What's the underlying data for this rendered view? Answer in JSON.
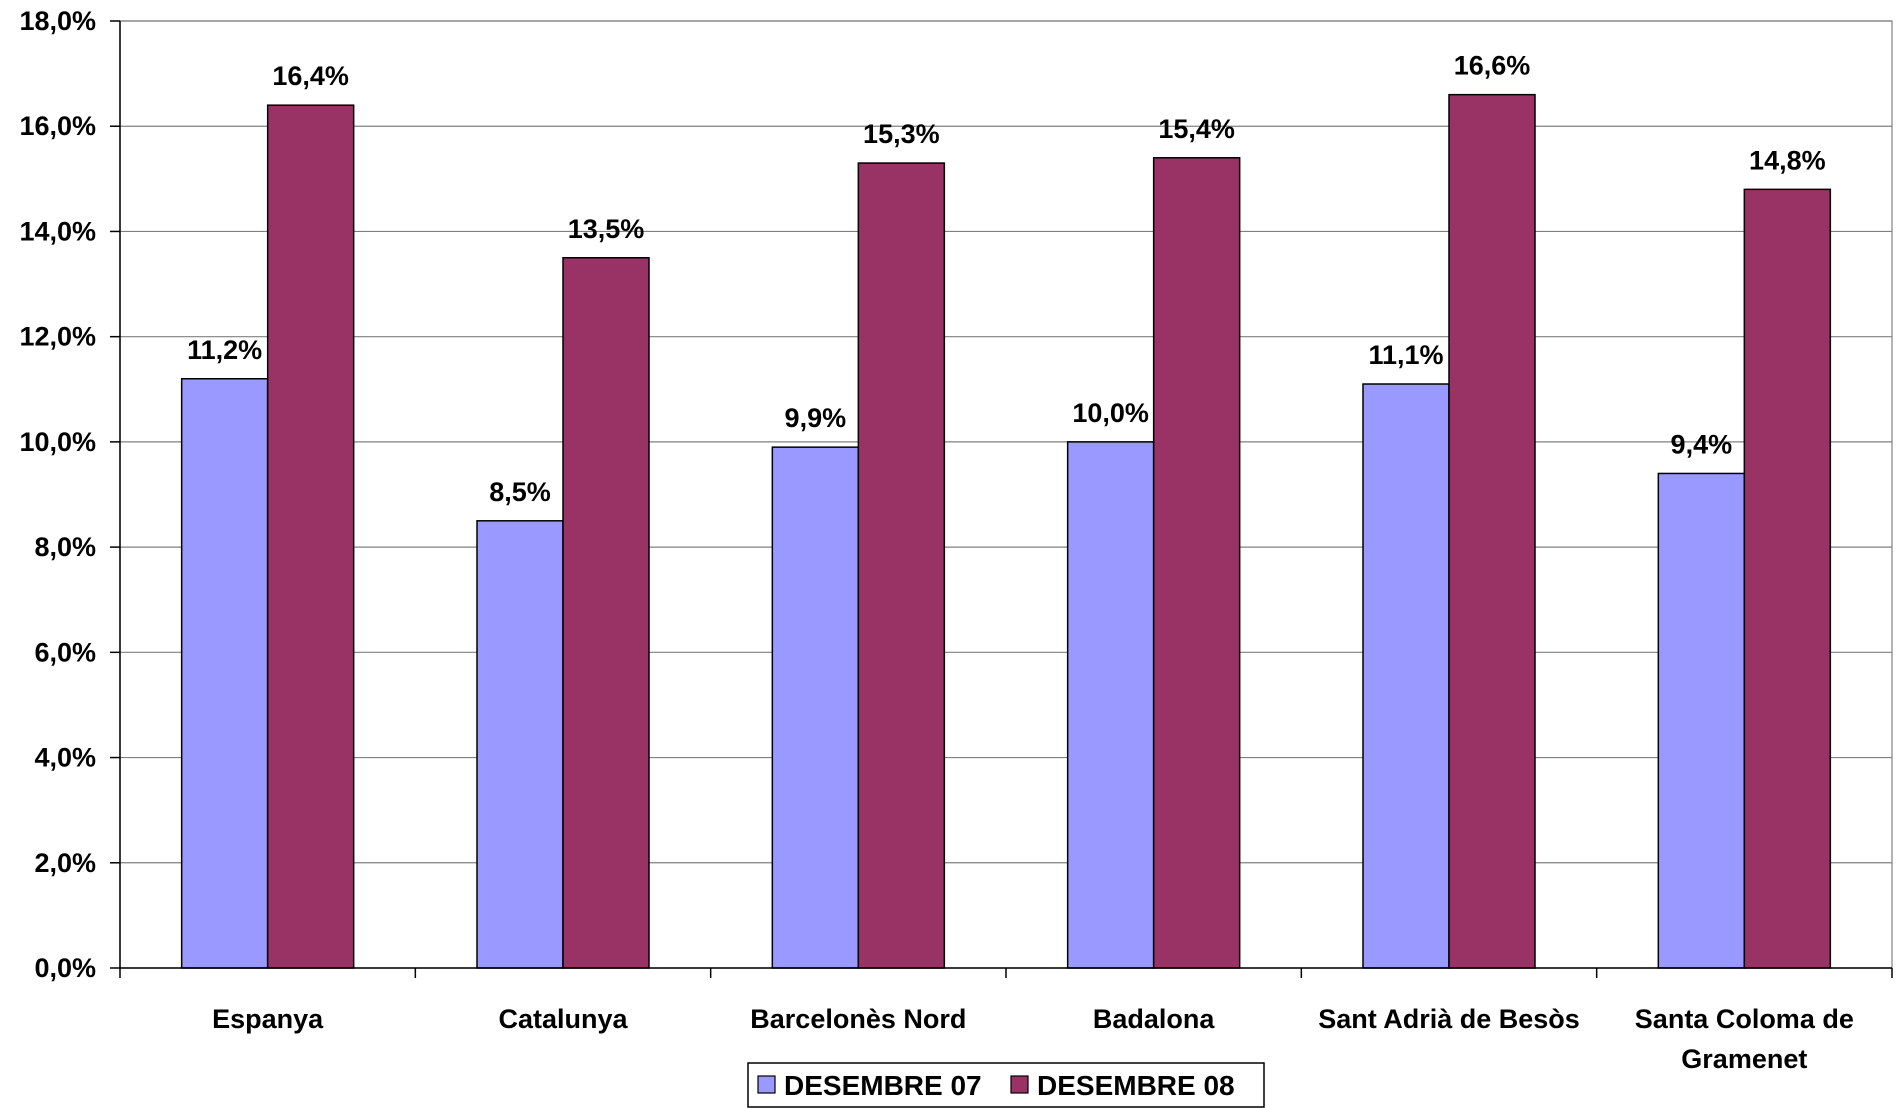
{
  "chart_data": {
    "type": "bar",
    "title": "",
    "xlabel": "",
    "ylabel": "",
    "categories": [
      "Espanya",
      "Catalunya",
      "Barcelonès Nord",
      "Badalona",
      "Sant Adrià de Besòs",
      "Santa Coloma de Gramenet"
    ],
    "category_lines": [
      [
        "Espanya"
      ],
      [
        "Catalunya"
      ],
      [
        "Barcelonès Nord"
      ],
      [
        "Badalona"
      ],
      [
        "Sant Adrià de Besòs"
      ],
      [
        "Santa Coloma de",
        "Gramenet"
      ]
    ],
    "series": [
      {
        "name": "DESEMBRE 07",
        "color": "#9999FF",
        "values": [
          11.2,
          8.5,
          9.9,
          10.0,
          11.1,
          9.4
        ],
        "labels": [
          "11,2%",
          "8,5%",
          "9,9%",
          "10,0%",
          "11,1%",
          "9,4%"
        ]
      },
      {
        "name": "DESEMBRE 08",
        "color": "#993366",
        "values": [
          16.4,
          13.5,
          15.3,
          15.4,
          16.6,
          14.8
        ],
        "labels": [
          "16,4%",
          "13,5%",
          "15,3%",
          "15,4%",
          "16,6%",
          "14,8%"
        ]
      }
    ],
    "ylim": [
      0,
      18
    ],
    "ytick_values": [
      0,
      2,
      4,
      6,
      8,
      10,
      12,
      14,
      16,
      18
    ],
    "ytick_labels": [
      "0,0%",
      "2,0%",
      "4,0%",
      "6,0%",
      "8,0%",
      "10,0%",
      "12,0%",
      "14,0%",
      "16,0%",
      "18,0%"
    ],
    "grid": true,
    "legend_position": "bottom"
  }
}
